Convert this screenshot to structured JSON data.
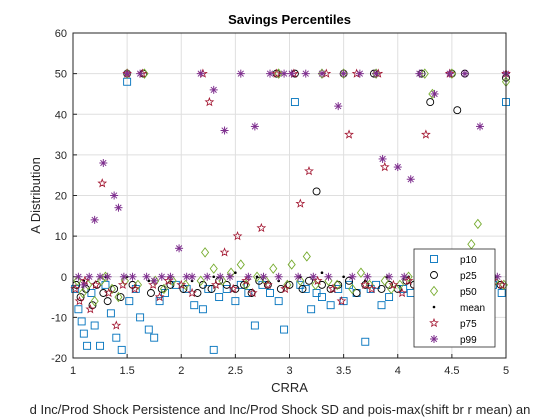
{
  "chart_data": {
    "type": "scatter",
    "title": "Savings Percentiles",
    "xlabel": "CRRA",
    "ylabel": "A Distribution",
    "caption": "d Inc/Prod Shock Persistence and Inc/Prod Shock SD and pois-max(shift br r mean) an",
    "xlim": [
      1,
      5
    ],
    "ylim": [
      -20,
      60
    ],
    "xticks": [
      "1",
      "1.5",
      "2",
      "2.5",
      "3",
      "3.5",
      "4",
      "4.5",
      "5"
    ],
    "yticks": [
      "-20",
      "-10",
      "0",
      "10",
      "20",
      "30",
      "40",
      "50",
      "60"
    ],
    "grid": true,
    "legend_position": "bottom-right",
    "series": [
      {
        "name": "p10",
        "marker": "square",
        "color": "#0072BD",
        "points": [
          [
            1.02,
            -3
          ],
          [
            1.05,
            -8
          ],
          [
            1.08,
            -11
          ],
          [
            1.1,
            -14
          ],
          [
            1.13,
            -17
          ],
          [
            1.17,
            -4
          ],
          [
            1.2,
            -12
          ],
          [
            1.25,
            -17
          ],
          [
            1.3,
            -2
          ],
          [
            1.35,
            -9
          ],
          [
            1.4,
            -15
          ],
          [
            1.45,
            -18
          ],
          [
            1.5,
            48
          ],
          [
            1.52,
            -6
          ],
          [
            1.58,
            -3
          ],
          [
            1.62,
            -10
          ],
          [
            1.7,
            -13
          ],
          [
            1.75,
            -15
          ],
          [
            1.8,
            -6
          ],
          [
            1.85,
            -4
          ],
          [
            1.95,
            -2
          ],
          [
            2.05,
            -3
          ],
          [
            2.12,
            -7
          ],
          [
            2.2,
            -8
          ],
          [
            2.25,
            -3
          ],
          [
            2.3,
            -18
          ],
          [
            2.35,
            -5
          ],
          [
            2.42,
            -3
          ],
          [
            2.5,
            -6
          ],
          [
            2.55,
            -2
          ],
          [
            2.62,
            -4
          ],
          [
            2.68,
            -12
          ],
          [
            2.75,
            -2
          ],
          [
            2.82,
            -4
          ],
          [
            2.9,
            -6
          ],
          [
            2.95,
            -13
          ],
          [
            3.05,
            43
          ],
          [
            3.1,
            -2
          ],
          [
            3.15,
            -3
          ],
          [
            3.2,
            -8
          ],
          [
            3.25,
            -4
          ],
          [
            3.3,
            -5
          ],
          [
            3.38,
            -7
          ],
          [
            3.45,
            -3
          ],
          [
            3.5,
            -6
          ],
          [
            3.55,
            -2
          ],
          [
            3.62,
            -4
          ],
          [
            3.7,
            -16
          ],
          [
            3.75,
            -3
          ],
          [
            3.8,
            -2
          ],
          [
            3.85,
            -7
          ],
          [
            3.92,
            -5
          ],
          [
            4.05,
            -3
          ],
          [
            4.12,
            -4
          ],
          [
            4.2,
            -6
          ],
          [
            4.28,
            -3
          ],
          [
            4.35,
            -4
          ],
          [
            4.42,
            -9
          ],
          [
            4.5,
            -3
          ],
          [
            4.58,
            -5
          ],
          [
            4.65,
            -2
          ],
          [
            4.72,
            -4
          ],
          [
            4.8,
            -3
          ],
          [
            4.88,
            -2
          ],
          [
            4.96,
            -4
          ],
          [
            5.0,
            43
          ]
        ]
      },
      {
        "name": "p25",
        "marker": "circle",
        "color": "#000000",
        "points": [
          [
            1.03,
            -2
          ],
          [
            1.07,
            -5
          ],
          [
            1.12,
            -3
          ],
          [
            1.18,
            -7
          ],
          [
            1.22,
            -2
          ],
          [
            1.28,
            -4
          ],
          [
            1.32,
            -6
          ],
          [
            1.38,
            -3
          ],
          [
            1.44,
            -5
          ],
          [
            1.5,
            50
          ],
          [
            1.55,
            -2
          ],
          [
            1.65,
            50
          ],
          [
            1.72,
            -4
          ],
          [
            1.82,
            -3
          ],
          [
            1.9,
            -2
          ],
          [
            2.02,
            -3
          ],
          [
            2.15,
            -4
          ],
          [
            2.2,
            -2
          ],
          [
            2.28,
            -3
          ],
          [
            2.35,
            -1
          ],
          [
            2.42,
            -2
          ],
          [
            2.5,
            -3
          ],
          [
            2.58,
            -2
          ],
          [
            2.65,
            -4
          ],
          [
            2.72,
            -1
          ],
          [
            2.8,
            -2
          ],
          [
            2.88,
            50
          ],
          [
            2.92,
            -3
          ],
          [
            3.0,
            -2
          ],
          [
            3.05,
            50
          ],
          [
            3.12,
            -3
          ],
          [
            3.18,
            -1
          ],
          [
            3.25,
            21
          ],
          [
            3.3,
            -2
          ],
          [
            3.38,
            -3
          ],
          [
            3.45,
            -2
          ],
          [
            3.5,
            50
          ],
          [
            3.55,
            -1
          ],
          [
            3.62,
            -4
          ],
          [
            3.7,
            -2
          ],
          [
            3.78,
            50
          ],
          [
            3.85,
            -3
          ],
          [
            3.92,
            -2
          ],
          [
            4.0,
            -3
          ],
          [
            4.08,
            -1
          ],
          [
            4.15,
            -2
          ],
          [
            4.22,
            50
          ],
          [
            4.3,
            43
          ],
          [
            4.36,
            -3
          ],
          [
            4.42,
            -2
          ],
          [
            4.5,
            50
          ],
          [
            4.55,
            41
          ],
          [
            4.62,
            50
          ],
          [
            4.7,
            -3
          ],
          [
            4.78,
            -2
          ],
          [
            4.86,
            -1
          ],
          [
            4.95,
            -2
          ],
          [
            5.0,
            49
          ]
        ]
      },
      {
        "name": "p50",
        "marker": "diamond",
        "color": "#77AC30",
        "points": [
          [
            1.04,
            -1
          ],
          [
            1.09,
            -4
          ],
          [
            1.14,
            -2
          ],
          [
            1.2,
            -6
          ],
          [
            1.26,
            -1
          ],
          [
            1.3,
            0
          ],
          [
            1.36,
            -3
          ],
          [
            1.42,
            -5
          ],
          [
            1.48,
            -1
          ],
          [
            1.5,
            50
          ],
          [
            1.6,
            -2
          ],
          [
            1.66,
            50
          ],
          [
            1.76,
            -1
          ],
          [
            1.84,
            -3
          ],
          [
            1.92,
            -1
          ],
          [
            2.04,
            -2
          ],
          [
            2.18,
            -1
          ],
          [
            2.22,
            6
          ],
          [
            2.3,
            2
          ],
          [
            2.38,
            -1
          ],
          [
            2.46,
            1
          ],
          [
            2.55,
            3
          ],
          [
            2.6,
            -2
          ],
          [
            2.7,
            0
          ],
          [
            2.78,
            -1
          ],
          [
            2.85,
            2
          ],
          [
            2.9,
            50
          ],
          [
            2.98,
            -2
          ],
          [
            3.02,
            3
          ],
          [
            3.1,
            -1
          ],
          [
            3.16,
            5
          ],
          [
            3.24,
            -2
          ],
          [
            3.3,
            50
          ],
          [
            3.36,
            -1
          ],
          [
            3.44,
            -2
          ],
          [
            3.5,
            50
          ],
          [
            3.58,
            -3
          ],
          [
            3.66,
            1
          ],
          [
            3.74,
            -2
          ],
          [
            3.8,
            50
          ],
          [
            3.88,
            -1
          ],
          [
            3.94,
            -3
          ],
          [
            4.02,
            -2
          ],
          [
            4.1,
            0
          ],
          [
            4.18,
            -1
          ],
          [
            4.25,
            50
          ],
          [
            4.32,
            45
          ],
          [
            4.38,
            -2
          ],
          [
            4.45,
            2
          ],
          [
            4.5,
            50
          ],
          [
            4.6,
            -1
          ],
          [
            4.68,
            8
          ],
          [
            4.74,
            13
          ],
          [
            4.82,
            -2
          ],
          [
            4.9,
            -1
          ],
          [
            4.98,
            -2
          ],
          [
            5.0,
            48
          ]
        ]
      },
      {
        "name": "mean",
        "marker": "point",
        "color": "#000000",
        "points": [
          [
            1.1,
            -1
          ],
          [
            1.3,
            0
          ],
          [
            1.5,
            0
          ],
          [
            1.7,
            -1
          ],
          [
            1.9,
            0
          ],
          [
            2.1,
            -1
          ],
          [
            2.3,
            0
          ],
          [
            2.5,
            1
          ],
          [
            2.7,
            0
          ],
          [
            2.9,
            -1
          ],
          [
            3.1,
            0
          ],
          [
            3.3,
            1
          ],
          [
            3.5,
            0
          ],
          [
            3.7,
            -1
          ],
          [
            3.9,
            0
          ],
          [
            4.1,
            0
          ],
          [
            4.3,
            1
          ],
          [
            4.5,
            0
          ],
          [
            4.7,
            -1
          ],
          [
            4.9,
            0
          ]
        ]
      },
      {
        "name": "p75",
        "marker": "star",
        "color": "#A2142F",
        "points": [
          [
            1.02,
            -3
          ],
          [
            1.06,
            -6
          ],
          [
            1.11,
            -1
          ],
          [
            1.16,
            -8
          ],
          [
            1.21,
            -2
          ],
          [
            1.27,
            23
          ],
          [
            1.33,
            -4
          ],
          [
            1.4,
            -12
          ],
          [
            1.46,
            -2
          ],
          [
            1.5,
            50
          ],
          [
            1.57,
            -3
          ],
          [
            1.64,
            50
          ],
          [
            1.74,
            -2
          ],
          [
            1.8,
            -5
          ],
          [
            1.88,
            -1
          ],
          [
            2.0,
            -2
          ],
          [
            2.1,
            -4
          ],
          [
            2.2,
            50
          ],
          [
            2.26,
            43
          ],
          [
            2.32,
            -2
          ],
          [
            2.4,
            6
          ],
          [
            2.48,
            -3
          ],
          [
            2.52,
            10
          ],
          [
            2.6,
            -1
          ],
          [
            2.66,
            -4
          ],
          [
            2.74,
            12
          ],
          [
            2.8,
            -2
          ],
          [
            2.88,
            50
          ],
          [
            2.96,
            -3
          ],
          [
            3.04,
            50
          ],
          [
            3.1,
            18
          ],
          [
            3.18,
            26
          ],
          [
            3.26,
            -1
          ],
          [
            3.34,
            50
          ],
          [
            3.4,
            -3
          ],
          [
            3.48,
            -6
          ],
          [
            3.55,
            35
          ],
          [
            3.62,
            50
          ],
          [
            3.7,
            -2
          ],
          [
            3.76,
            -3
          ],
          [
            3.82,
            50
          ],
          [
            3.88,
            27
          ],
          [
            3.96,
            -2
          ],
          [
            4.04,
            -4
          ],
          [
            4.1,
            -1
          ],
          [
            4.18,
            -3
          ],
          [
            4.26,
            35
          ],
          [
            4.34,
            -5
          ],
          [
            4.4,
            -2
          ],
          [
            4.48,
            50
          ],
          [
            4.56,
            -3
          ],
          [
            4.64,
            -1
          ],
          [
            4.72,
            -2
          ],
          [
            4.8,
            -4
          ],
          [
            4.88,
            -1
          ],
          [
            4.96,
            -2
          ],
          [
            5.0,
            50
          ]
        ]
      },
      {
        "name": "p99",
        "marker": "asterisk",
        "color": "#7E2F8E",
        "points": [
          [
            1.05,
            0
          ],
          [
            1.1,
            -2
          ],
          [
            1.15,
            0
          ],
          [
            1.2,
            14
          ],
          [
            1.25,
            0
          ],
          [
            1.28,
            28
          ],
          [
            1.32,
            0
          ],
          [
            1.38,
            20
          ],
          [
            1.42,
            17
          ],
          [
            1.47,
            0
          ],
          [
            1.5,
            50
          ],
          [
            1.55,
            0
          ],
          [
            1.62,
            50
          ],
          [
            1.68,
            0
          ],
          [
            1.75,
            -1
          ],
          [
            1.82,
            0
          ],
          [
            1.9,
            0
          ],
          [
            1.98,
            7
          ],
          [
            2.05,
            0
          ],
          [
            2.1,
            0
          ],
          [
            2.18,
            50
          ],
          [
            2.24,
            0
          ],
          [
            2.3,
            46
          ],
          [
            2.36,
            0
          ],
          [
            2.4,
            36
          ],
          [
            2.45,
            0
          ],
          [
            2.55,
            50
          ],
          [
            2.62,
            0
          ],
          [
            2.68,
            37
          ],
          [
            2.76,
            0
          ],
          [
            2.82,
            50
          ],
          [
            2.9,
            0
          ],
          [
            2.95,
            50
          ],
          [
            3.02,
            50
          ],
          [
            3.08,
            0
          ],
          [
            3.15,
            50
          ],
          [
            3.22,
            0
          ],
          [
            3.3,
            50
          ],
          [
            3.36,
            0
          ],
          [
            3.45,
            42
          ],
          [
            3.5,
            50
          ],
          [
            3.58,
            0
          ],
          [
            3.65,
            50
          ],
          [
            3.72,
            0
          ],
          [
            3.8,
            50
          ],
          [
            3.86,
            29
          ],
          [
            3.92,
            0
          ],
          [
            4.0,
            27
          ],
          [
            4.06,
            0
          ],
          [
            4.12,
            24
          ],
          [
            4.2,
            50
          ],
          [
            4.28,
            0
          ],
          [
            4.34,
            45
          ],
          [
            4.4,
            0
          ],
          [
            4.48,
            50
          ],
          [
            4.56,
            0
          ],
          [
            4.62,
            50
          ],
          [
            4.7,
            0
          ],
          [
            4.76,
            37
          ],
          [
            4.84,
            0
          ],
          [
            4.92,
            0
          ],
          [
            5.0,
            50
          ]
        ]
      }
    ]
  }
}
